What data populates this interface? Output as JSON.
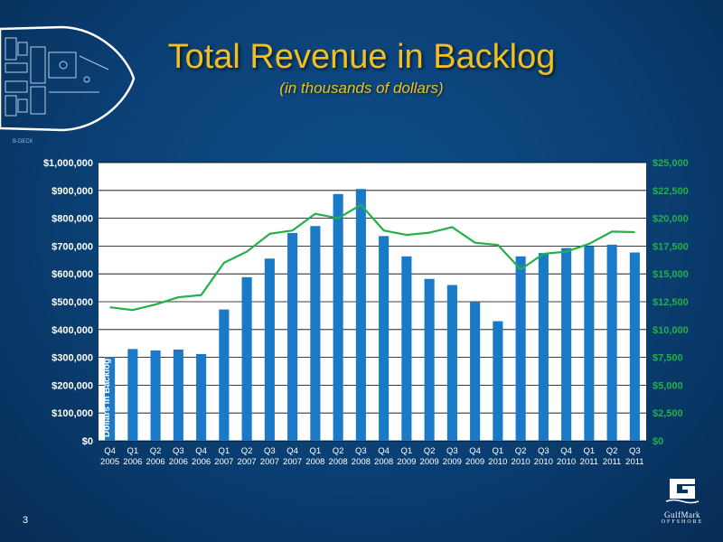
{
  "slide": {
    "title": "Total Revenue in Backlog",
    "subtitle": "(in thousands of dollars)",
    "slide_number": "3",
    "deck_label": "B-DECK",
    "logo": {
      "name": "GulfMark",
      "sub": "OFFSHORE",
      "mark": "G"
    }
  },
  "colors": {
    "bar": "#1a7ac8",
    "line": "#22b04a",
    "title": "#f0c020",
    "plot_bg": "#ffffff",
    "grid": "#000000"
  },
  "chart_data": {
    "type": "bar",
    "title": "Total Revenue in Backlog",
    "subtitle": "(in thousands of dollars)",
    "categories": [
      [
        "Q4",
        "2005"
      ],
      [
        "Q1",
        "2006"
      ],
      [
        "Q2",
        "2006"
      ],
      [
        "Q3",
        "2006"
      ],
      [
        "Q4",
        "2006"
      ],
      [
        "Q1",
        "2007"
      ],
      [
        "Q2",
        "2007"
      ],
      [
        "Q3",
        "2007"
      ],
      [
        "Q4",
        "2007"
      ],
      [
        "Q1",
        "2008"
      ],
      [
        "Q2",
        "2008"
      ],
      [
        "Q3",
        "2008"
      ],
      [
        "Q4",
        "2008"
      ],
      [
        "Q1",
        "2009"
      ],
      [
        "Q2",
        "2009"
      ],
      [
        "Q3",
        "2009"
      ],
      [
        "Q4",
        "2009"
      ],
      [
        "Q1",
        "2010"
      ],
      [
        "Q2",
        "2010"
      ],
      [
        "Q3",
        "2010"
      ],
      [
        "Q4",
        "2010"
      ],
      [
        "Q1",
        "2011"
      ],
      [
        "Q2",
        "2011"
      ],
      [
        "Q3",
        "2011"
      ]
    ],
    "series": [
      {
        "name": "Dollars in Backlog",
        "type": "bar",
        "axis": "left",
        "values": [
          300000,
          330000,
          325000,
          328000,
          312000,
          472000,
          588000,
          655000,
          747000,
          772000,
          887000,
          905000,
          736000,
          663000,
          582000,
          560000,
          498000,
          430000,
          663000,
          675000,
          693000,
          700000,
          705000,
          677000
        ]
      },
      {
        "type": "line",
        "axis": "right",
        "values": [
          12000,
          11750,
          12250,
          12900,
          13100,
          16000,
          17000,
          18600,
          18900,
          20400,
          20000,
          21200,
          18900,
          18500,
          18700,
          19200,
          17800,
          17600,
          15400,
          16800,
          17000,
          17700,
          18800,
          18750
        ]
      }
    ],
    "ylabel": "Dollars in Backlog",
    "ylim": [
      0,
      1000000
    ],
    "y_ticks": [
      0,
      100000,
      200000,
      300000,
      400000,
      500000,
      600000,
      700000,
      800000,
      900000,
      1000000
    ],
    "y_tick_labels": [
      "$0",
      "$100,000",
      "$200,000",
      "$300,000",
      "$400,000",
      "$500,000",
      "$600,000",
      "$700,000",
      "$800,000",
      "$900,000",
      "$1,000,000"
    ],
    "y2lim": [
      0,
      25000
    ],
    "y2_ticks": [
      0,
      2500,
      5000,
      7500,
      10000,
      12500,
      15000,
      17500,
      20000,
      22500,
      25000
    ],
    "y2_tick_labels": [
      "$0",
      "$2,500",
      "$5,000",
      "$7,500",
      "$10,000",
      "$12,500",
      "$15,000",
      "$17,500",
      "$20,000",
      "$22,500",
      "$25,000"
    ],
    "grid": true,
    "legend": "none"
  }
}
